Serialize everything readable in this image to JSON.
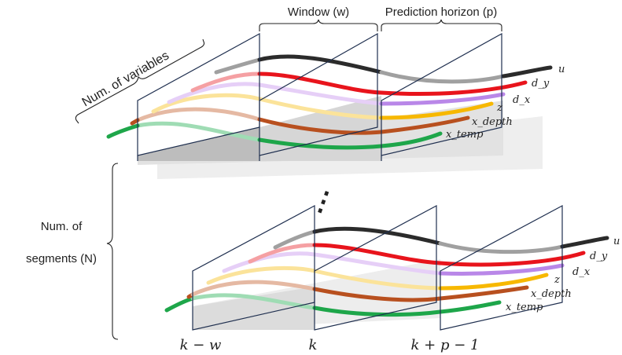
{
  "labels": {
    "window": "Window (w)",
    "prediction_horizon": "Prediction horizon (p)",
    "num_variables": "Num. of variables",
    "num_segments_line1": "Num. of",
    "num_segments_line2": "segments (N)",
    "ellipsis": "⋮"
  },
  "series_labels": [
    "u",
    "d_y",
    "d_x",
    "z",
    "x_depth",
    "x_temp"
  ],
  "series_colors": {
    "u": "#2b2b2b",
    "u_past": "#a0a0a0",
    "d_y": "#e8141c",
    "d_y_past": "#f5a0a3",
    "d_x": "#b987e8",
    "d_x_past": "#e6cff7",
    "z": "#f7b800",
    "z_past": "#fbe39a",
    "x_depth": "#b8501f",
    "x_depth_past": "#e5b9a3",
    "x_temp": "#1ea64a",
    "x_temp_past": "#9fdcb4"
  },
  "axis_labels": [
    "k − w",
    "k",
    "k + p − 1"
  ]
}
